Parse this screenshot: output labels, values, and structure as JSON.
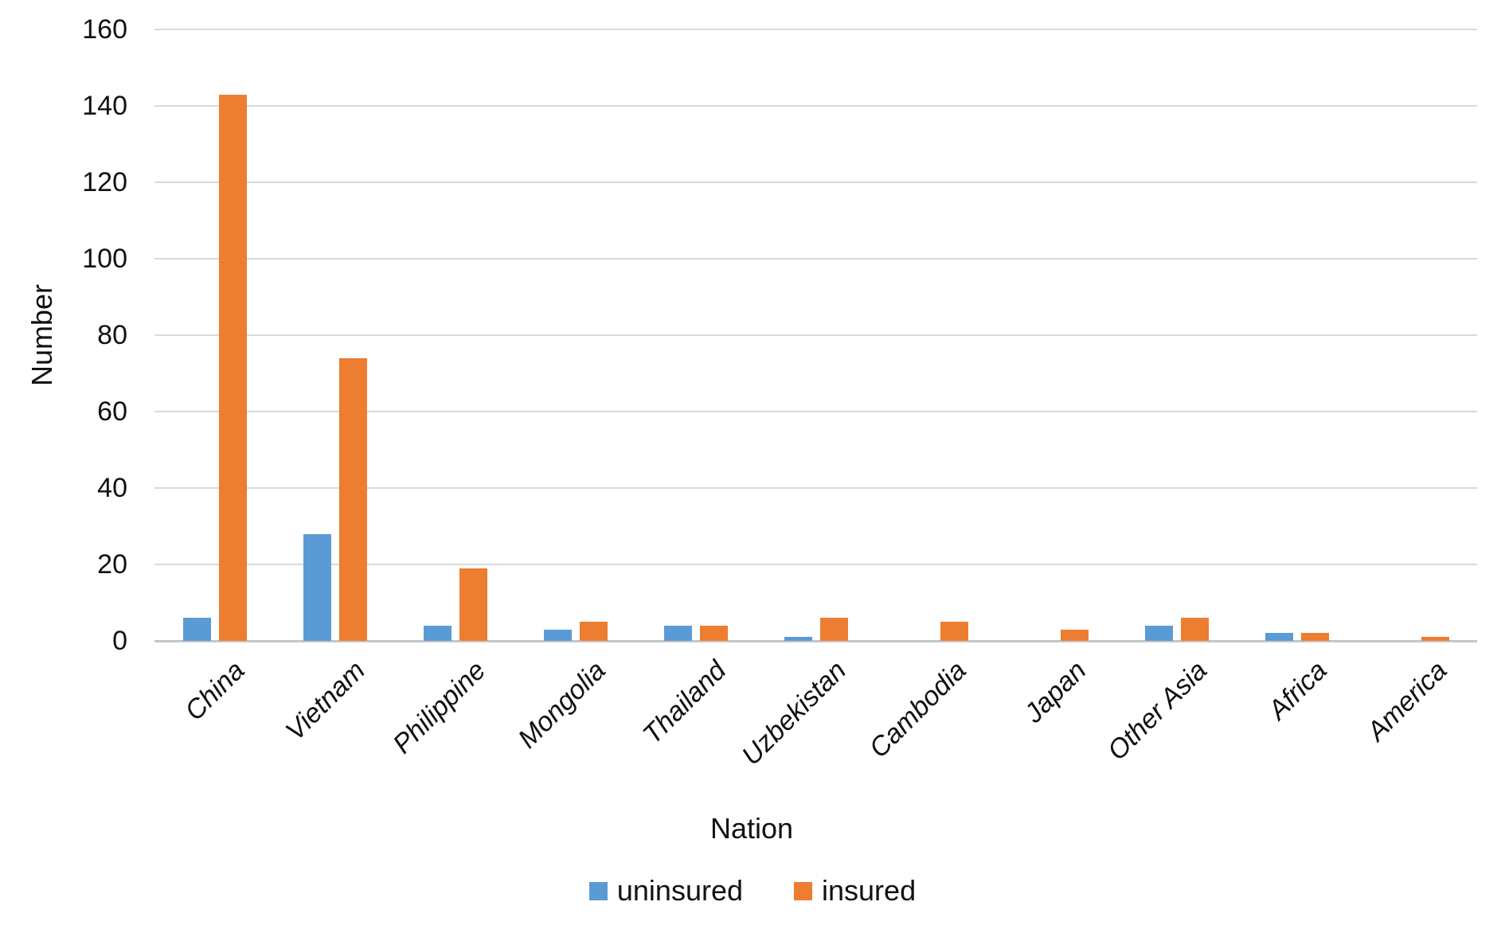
{
  "chart_data": {
    "type": "bar",
    "title": "",
    "xlabel": "Nation",
    "ylabel": "Number",
    "categories": [
      "China",
      "Vietnam",
      "Philippine",
      "Mongolia",
      "Thailand",
      "Uzbekistan",
      "Cambodia",
      "Japan",
      "Other Asia",
      "Africa",
      "America"
    ],
    "series": [
      {
        "name": "uninsured",
        "color": "#5B9BD5",
        "values": [
          6,
          28,
          4,
          3,
          4,
          1,
          0,
          0,
          4,
          2,
          0
        ]
      },
      {
        "name": "insured",
        "color": "#ED7D31",
        "values": [
          143,
          74,
          19,
          5,
          4,
          6,
          5,
          3,
          6,
          2,
          1
        ]
      }
    ],
    "ylim": [
      0,
      160
    ],
    "ytick_step": 20,
    "grid": "horizontal",
    "legend_position": "bottom",
    "x_tick_rotation_deg": 45,
    "x_tick_style": "italic"
  },
  "colors": {
    "gridline": "#d9d9d9",
    "axis_line": "#c6c6c6",
    "text": "#111111",
    "background": "#ffffff"
  }
}
